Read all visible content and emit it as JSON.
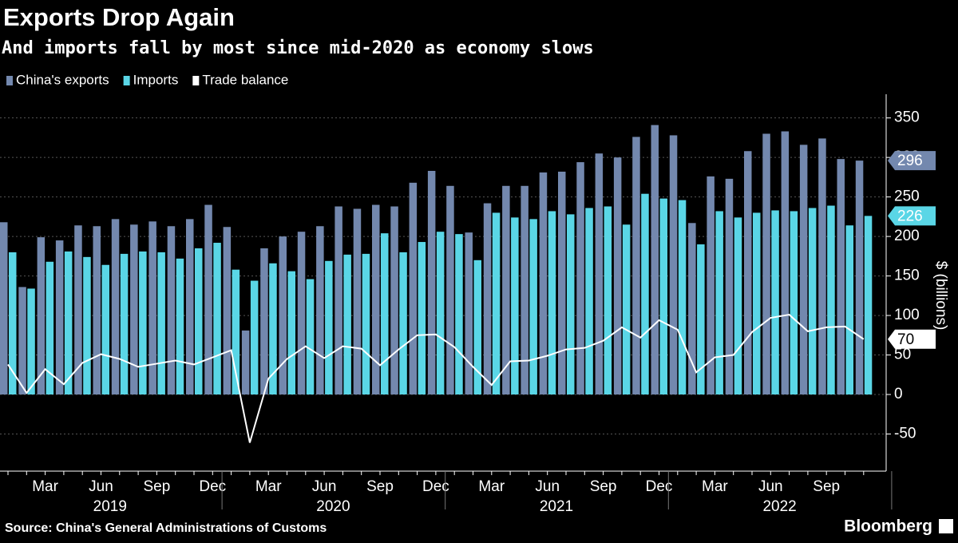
{
  "chart_data": {
    "type": "bar-line",
    "title": "Exports Drop Again",
    "subtitle": "And imports fall by most since mid-2020 as economy slows",
    "ylabel": "$ (billions)",
    "source": "Source: China's General Administrations of Customs",
    "brand": "Bloomberg",
    "legend": "top-left",
    "grid": true,
    "categories": [
      null,
      null,
      "Mar",
      null,
      null,
      "Jun",
      null,
      null,
      "Sep",
      null,
      null,
      "Dec",
      null,
      null,
      "Mar",
      null,
      null,
      "Jun",
      null,
      null,
      "Sep",
      null,
      null,
      "Dec",
      null,
      null,
      "Mar",
      null,
      null,
      "Jun",
      null,
      null,
      "Sep",
      null,
      null,
      "Dec",
      null,
      null,
      "Mar",
      null,
      null,
      "Jun",
      null,
      null,
      "Sep",
      null,
      null
    ],
    "year_labels": [
      "2019",
      "2020",
      "2021",
      "2022"
    ],
    "ylim": [
      -97,
      380
    ],
    "yticks": [
      -50,
      0,
      50,
      100,
      150,
      200,
      250,
      300,
      350
    ],
    "series": [
      {
        "name": "China's exports",
        "color": "#7388ae",
        "kind": "bar",
        "values": [
          218,
          136,
          199,
          195,
          214,
          213,
          222,
          215,
          219,
          213,
          222,
          240,
          212,
          81,
          185,
          200,
          206,
          213,
          238,
          235,
          240,
          238,
          268,
          283,
          264,
          205,
          242,
          264,
          264,
          281,
          282,
          294,
          305,
          300,
          326,
          341,
          328,
          217,
          276,
          273,
          308,
          330,
          333,
          316,
          324,
          298,
          296
        ]
      },
      {
        "name": "Imports",
        "color": "#5ad6e6",
        "kind": "bar",
        "values": [
          180,
          134,
          168,
          181,
          174,
          164,
          178,
          181,
          180,
          172,
          185,
          192,
          158,
          144,
          166,
          156,
          146,
          169,
          177,
          178,
          204,
          180,
          193,
          206,
          203,
          170,
          230,
          224,
          222,
          232,
          228,
          236,
          238,
          215,
          254,
          248,
          246,
          190,
          232,
          224,
          230,
          233,
          232,
          236,
          239,
          214,
          226
        ]
      },
      {
        "name": "Trade balance",
        "color": "#ffffff",
        "kind": "line",
        "values": [
          38,
          2,
          32,
          13,
          40,
          51,
          45,
          35,
          39,
          43,
          38,
          47,
          56,
          -61,
          20,
          45,
          61,
          46,
          61,
          58,
          37,
          57,
          75,
          76,
          60,
          35,
          12,
          42,
          43,
          49,
          57,
          59,
          68,
          85,
          72,
          94,
          82,
          28,
          47,
          50,
          79,
          97,
          101,
          80,
          85,
          86,
          70
        ]
      }
    ]
  }
}
